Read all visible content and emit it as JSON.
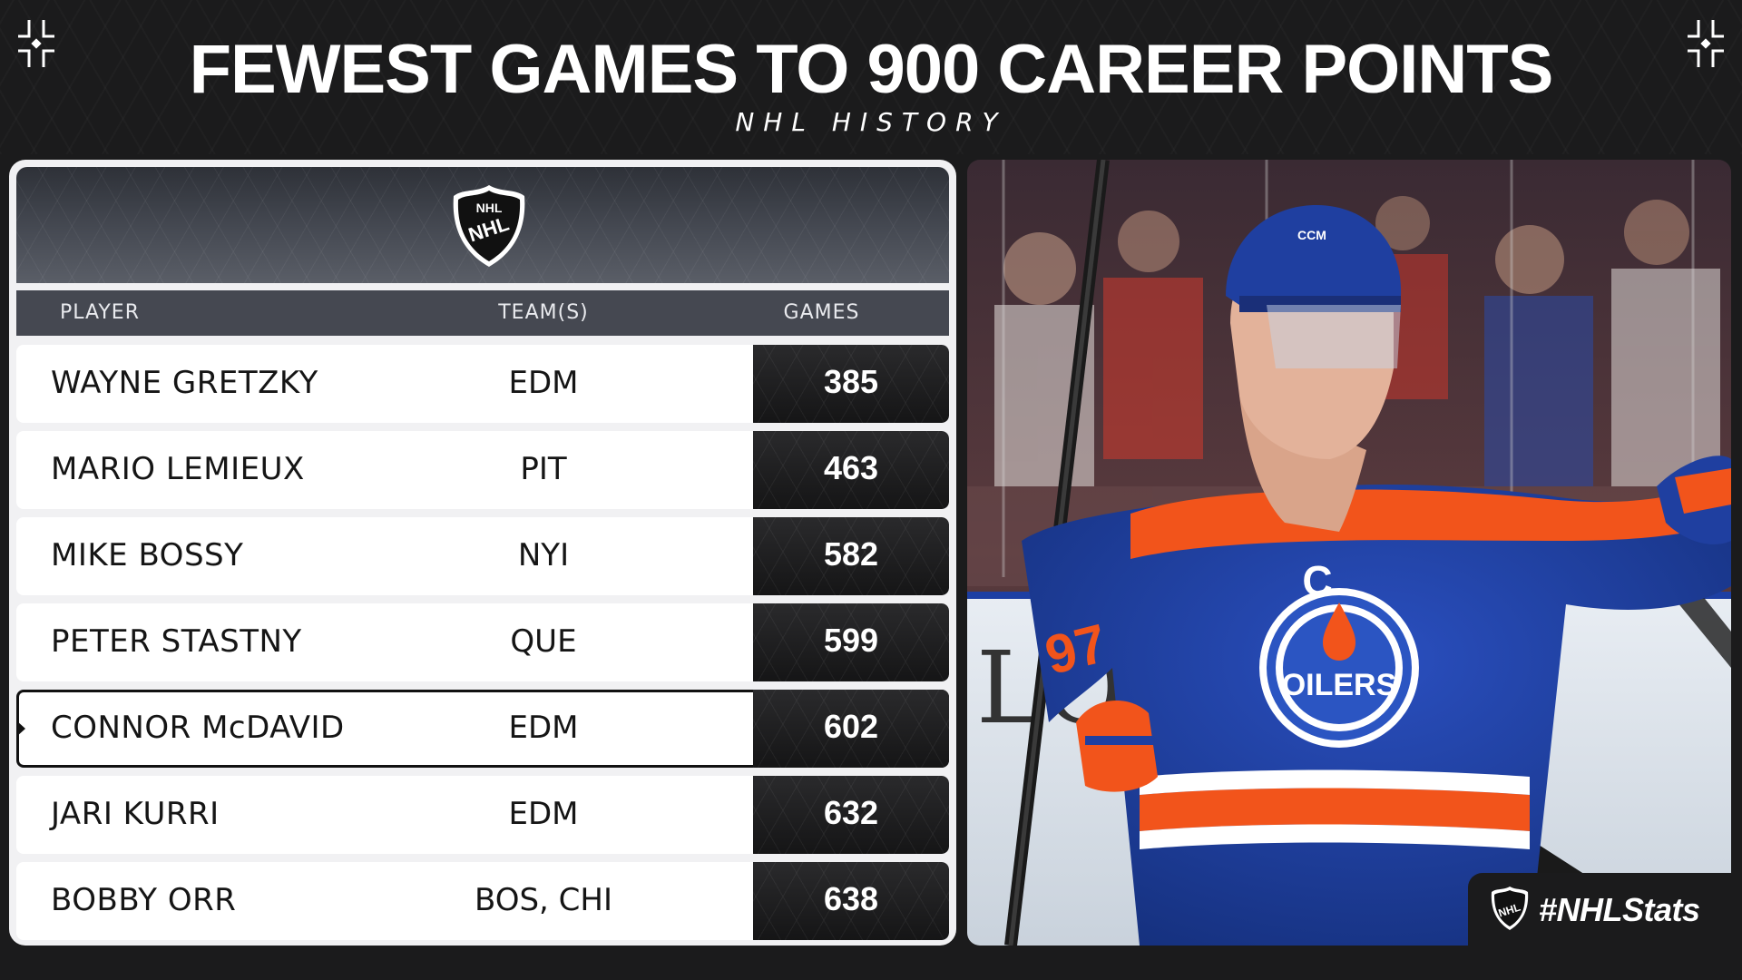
{
  "header": {
    "title": "FEWEST GAMES TO 900 CAREER POINTS",
    "subtitle": "NHL HISTORY"
  },
  "table": {
    "logo_icon": "nhl-shield-logo",
    "columns": {
      "player": "PLAYER",
      "teams": "TEAM(S)",
      "games": "GAMES"
    },
    "rows": [
      {
        "player": "WAYNE GRETZKY",
        "teams": "EDM",
        "games": "385"
      },
      {
        "player": "MARIO LEMIEUX",
        "teams": "PIT",
        "games": "463"
      },
      {
        "player": "MIKE BOSSY",
        "teams": "NYI",
        "games": "582"
      },
      {
        "player": "PETER STASTNY",
        "teams": "QUE",
        "games": "599"
      },
      {
        "player": "CONNOR McDAVID",
        "teams": "EDM",
        "games": "602",
        "highlighted": true
      },
      {
        "player": "JARI KURRI",
        "teams": "EDM",
        "games": "632"
      },
      {
        "player": "BOBBY ORR",
        "teams": "BOS, CHI",
        "games": "638"
      }
    ]
  },
  "photo": {
    "jersey_letter": "C",
    "jersey_number": "97",
    "crest_text": "OILERS",
    "helmet_brand": "CCM",
    "board_text": "LOU"
  },
  "footer": {
    "hashtag": "#NHLStats",
    "logo_icon": "nhl-shield-logo"
  },
  "colors": {
    "background": "#1b1b1c",
    "oilers_blue": "#1f3fa0",
    "oilers_orange": "#f2541b"
  }
}
